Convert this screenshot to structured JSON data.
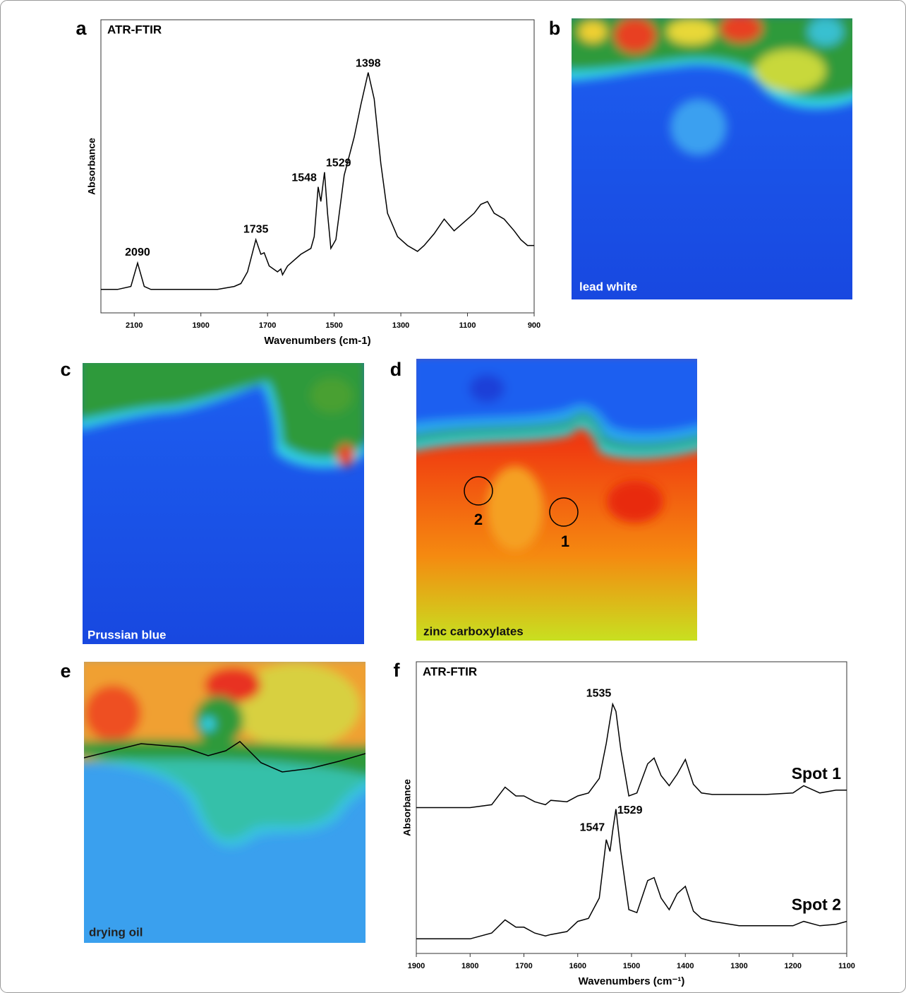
{
  "chart_data": [
    {
      "type": "line",
      "panel": "a",
      "title": "ATR-FTIR",
      "x_label": "Wavenumbers (cm-1)",
      "y_label": "Absorbance",
      "xlim": [
        2200,
        900
      ],
      "ylim": [
        0,
        100
      ],
      "xticks": [
        2100,
        1900,
        1700,
        1500,
        1300,
        1100,
        900
      ],
      "x": [
        2200,
        2150,
        2110,
        2090,
        2070,
        2050,
        1900,
        1850,
        1800,
        1780,
        1760,
        1735,
        1720,
        1710,
        1695,
        1670,
        1660,
        1655,
        1640,
        1600,
        1570,
        1560,
        1548,
        1540,
        1529,
        1520,
        1510,
        1495,
        1470,
        1440,
        1420,
        1398,
        1380,
        1360,
        1340,
        1310,
        1280,
        1250,
        1230,
        1200,
        1170,
        1140,
        1110,
        1080,
        1060,
        1040,
        1020,
        990,
        960,
        940,
        920,
        900
      ],
      "series": [
        {
          "color": "#000000",
          "values": [
            8,
            8,
            9,
            17,
            9,
            8,
            8,
            8,
            9,
            10,
            14,
            25,
            20,
            20.5,
            16,
            14,
            15,
            13,
            16,
            20,
            22,
            26,
            43,
            38,
            48,
            34,
            22,
            25,
            47,
            60,
            71,
            82,
            73,
            51,
            34,
            26,
            23,
            21,
            23,
            27,
            32,
            28,
            31,
            34,
            37,
            38,
            34,
            32,
            28,
            25,
            23,
            23
          ]
        }
      ],
      "annotations": [
        {
          "x": 2090,
          "y": 20.5
        },
        {
          "x": 1735,
          "y": 28.4
        },
        {
          "x": 1548,
          "y": 46
        },
        {
          "x": 1529,
          "y": 51
        },
        {
          "x": 1398,
          "y": 85
        }
      ]
    },
    {
      "type": "line",
      "panel": "f",
      "title": "ATR-FTIR",
      "x_label": "Wavenumbers (cm⁻¹)",
      "y_label": "Absorbance",
      "xlim": [
        1900,
        1100
      ],
      "ylim": [
        0,
        100
      ],
      "xticks": [
        1900,
        1800,
        1700,
        1600,
        1500,
        1400,
        1300,
        1200,
        1100
      ],
      "x": [
        1900,
        1800,
        1760,
        1735,
        1715,
        1700,
        1680,
        1660,
        1650,
        1620,
        1600,
        1580,
        1560,
        1547,
        1540,
        1535,
        1529,
        1520,
        1505,
        1490,
        1470,
        1458,
        1445,
        1430,
        1415,
        1400,
        1385,
        1370,
        1350,
        1300,
        1250,
        1200,
        1180,
        1150,
        1120,
        1100
      ],
      "series": [
        {
          "name": "Spot 1",
          "color": "#000000",
          "values": [
            50,
            50,
            51,
            57,
            54,
            54,
            52,
            51,
            52.5,
            52,
            54,
            55,
            60,
            72,
            80,
            85.5,
            83,
            70,
            54,
            55,
            65,
            67,
            61,
            57.5,
            61.5,
            66.5,
            58,
            55,
            54.5,
            54.5,
            54.5,
            55,
            57.5,
            55,
            56,
            56
          ]
        },
        {
          "name": "Spot 2",
          "color": "#000000",
          "values": [
            5,
            5,
            7,
            11.5,
            9,
            9,
            7,
            6,
            6.5,
            7.5,
            11,
            12,
            19,
            39,
            35,
            42,
            49.5,
            35,
            15,
            14,
            25,
            26,
            19,
            15,
            20.5,
            23,
            14.5,
            12,
            11,
            9.5,
            9.5,
            9.5,
            11,
            9.5,
            10,
            11
          ]
        }
      ],
      "annotations": [
        {
          "x": 1535,
          "y": 89
        },
        {
          "x": 1547,
          "y": 43
        },
        {
          "x": 1529,
          "y": 49
        }
      ]
    }
  ],
  "maps": [
    {
      "panel": "b",
      "label": "lead white"
    },
    {
      "panel": "c",
      "label": "Prussian blue"
    },
    {
      "panel": "d",
      "label": "zinc carboxylates",
      "spots": [
        "2",
        "1"
      ]
    },
    {
      "panel": "e",
      "label": "drying oil"
    }
  ]
}
